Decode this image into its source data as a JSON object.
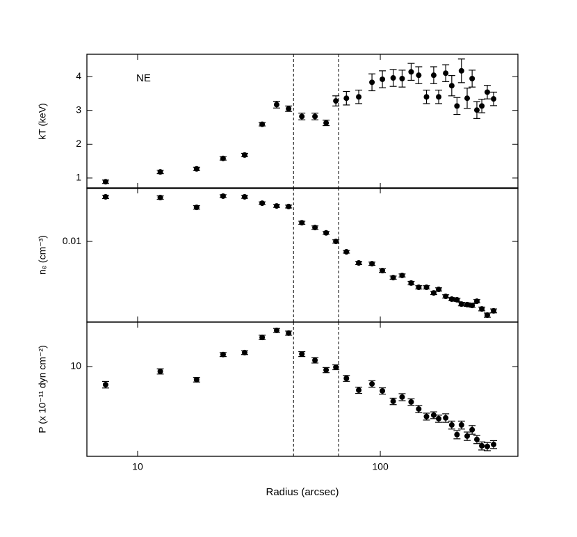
{
  "chart_data": [
    {
      "type": "scatter",
      "annotation": "NE",
      "ylabel": "kT (keV)",
      "x": [
        7.38,
        12.4,
        17.5,
        22.5,
        27.6,
        32.6,
        37.4,
        41.9,
        47.5,
        53.8,
        59.8,
        65.6,
        72.5,
        81.5,
        92.4,
        102,
        113,
        123,
        134,
        144,
        155,
        166,
        174,
        186,
        197,
        207,
        216,
        228,
        239,
        250,
        262,
        276,
        293
      ],
      "series": [
        {
          "color": "#000000",
          "values": [
            0.89,
            1.18,
            1.27,
            1.58,
            1.68,
            2.59,
            3.17,
            3.05,
            2.82,
            2.82,
            2.63,
            3.28,
            3.36,
            3.4,
            3.83,
            3.92,
            3.96,
            3.94,
            4.14,
            4.04,
            3.4,
            4.04,
            3.4,
            4.1,
            3.73,
            3.13,
            4.17,
            3.36,
            3.94,
            3.01,
            3.13,
            3.54,
            3.34
          ],
          "errors": [
            0.05,
            0.05,
            0.05,
            0.05,
            0.05,
            0.05,
            0.1,
            0.08,
            0.1,
            0.1,
            0.08,
            0.15,
            0.2,
            0.2,
            0.25,
            0.25,
            0.25,
            0.25,
            0.25,
            0.25,
            0.2,
            0.25,
            0.2,
            0.25,
            0.3,
            0.25,
            0.35,
            0.3,
            0.25,
            0.25,
            0.2,
            0.2,
            0.2
          ]
        }
      ],
      "xlim": [
        6.18,
        369
      ],
      "xlog": true,
      "ylim": [
        0.69,
        4.66
      ],
      "yticks": [
        1,
        2,
        3,
        4
      ],
      "vlines": [
        43.9,
        67.3
      ]
    },
    {
      "type": "scatter",
      "ylabel": "nₑ (cm⁻³)",
      "x": [
        7.38,
        12.4,
        17.5,
        22.5,
        27.6,
        32.6,
        37.4,
        41.9,
        47.5,
        53.8,
        59.8,
        65.6,
        72.5,
        81.5,
        92.4,
        102,
        113,
        123,
        134,
        144,
        155,
        166,
        174,
        186,
        197,
        207,
        216,
        228,
        239,
        250,
        262,
        276,
        293
      ],
      "series": [
        {
          "color": "#000000",
          "values": [
            0.0227,
            0.0224,
            0.0187,
            0.023,
            0.0227,
            0.0202,
            0.0192,
            0.019,
            0.0141,
            0.0129,
            0.0117,
            0.01,
            0.00826,
            0.00673,
            0.00664,
            0.00585,
            0.00514,
            0.00535,
            0.00465,
            0.0043,
            0.0043,
            0.00388,
            0.00414,
            0.00364,
            0.00346,
            0.00342,
            0.00316,
            0.00313,
            0.00308,
            0.00333,
            0.00289,
            0.00258,
            0.00279
          ],
          "errors": [
            0.0007,
            0.0007,
            0.0006,
            0.0006,
            0.0006,
            0.0005,
            0.0005,
            0.0005,
            0.0004,
            0.0004,
            0.0003,
            0.0003,
            0.0002,
            0.0002,
            0.0002,
            0.0002,
            0.00015,
            0.00015,
            0.00015,
            0.00013,
            0.00013,
            0.00012,
            0.00012,
            0.00011,
            0.0001,
            0.0001,
            0.0001,
            0.0001,
            0.0001,
            0.0001,
            0.0001,
            0.0001,
            0.0001
          ]
        }
      ],
      "xlim": [
        6.18,
        369
      ],
      "xlog": true,
      "ylim": [
        0.00227,
        0.0268
      ],
      "ylog": true,
      "yticks": [
        0.01
      ],
      "vlines": [
        43.9,
        67.3
      ]
    },
    {
      "type": "scatter",
      "ylabel": "P (x 10⁻¹¹ dyn cm⁻²)",
      "xlabel": "Radius (arcsec)",
      "x": [
        7.38,
        12.4,
        17.5,
        22.5,
        27.6,
        32.6,
        37.4,
        41.9,
        47.5,
        53.8,
        59.8,
        65.6,
        72.5,
        81.5,
        92.4,
        102,
        113,
        123,
        134,
        144,
        155,
        166,
        174,
        186,
        197,
        207,
        216,
        228,
        239,
        250,
        262,
        276,
        293
      ],
      "series": [
        {
          "color": "#000000",
          "values": [
            7.41,
            9.23,
            8.04,
            12.2,
            12.6,
            16.2,
            18.2,
            17.4,
            12.3,
            11.1,
            9.44,
            9.89,
            8.22,
            6.76,
            7.5,
            6.68,
            5.62,
            6.03,
            5.56,
            4.95,
            4.37,
            4.47,
            4.22,
            4.27,
            3.8,
            3.24,
            3.8,
            3.16,
            3.51,
            2.99,
            2.69,
            2.66,
            2.75
          ],
          "errors": [
            0.4,
            0.4,
            0.3,
            0.4,
            0.4,
            0.6,
            0.6,
            0.6,
            0.5,
            0.5,
            0.4,
            0.4,
            0.4,
            0.35,
            0.4,
            0.35,
            0.3,
            0.35,
            0.3,
            0.3,
            0.25,
            0.25,
            0.25,
            0.3,
            0.25,
            0.22,
            0.25,
            0.22,
            0.25,
            0.2,
            0.18,
            0.18,
            0.18
          ]
        }
      ],
      "xlim": [
        6.18,
        369
      ],
      "xlog": true,
      "xticks": [
        10,
        100
      ],
      "ylim": [
        2.26,
        20.9
      ],
      "ylog": true,
      "yticks": [
        10
      ],
      "vlines": [
        43.9,
        67.3
      ]
    }
  ]
}
